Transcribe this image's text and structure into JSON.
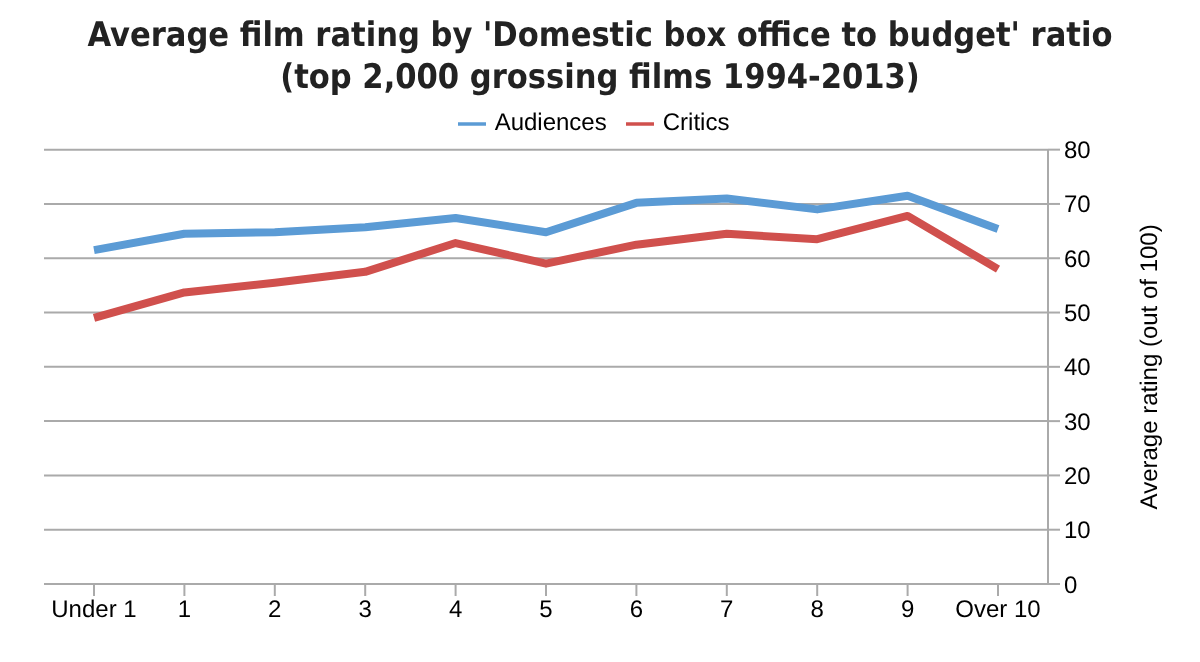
{
  "chart_data": {
    "type": "line",
    "title": "Average film rating by 'Domestic box office to budget' ratio (top 2,000 grossing films 1994-2013)",
    "ylabel": "Average rating (out of 100)",
    "categories": [
      "Under 1",
      "1",
      "2",
      "3",
      "4",
      "5",
      "6",
      "7",
      "8",
      "9",
      "Over 10"
    ],
    "series": [
      {
        "name": "Audiences",
        "color": "#5b9bd5",
        "values": [
          61.5,
          64.5,
          64.8,
          65.7,
          67.4,
          64.8,
          70.2,
          71,
          69,
          71.5,
          65.4
        ]
      },
      {
        "name": "Critics",
        "color": "#d0504d",
        "values": [
          49,
          53.7,
          55.5,
          57.5,
          62.8,
          59,
          62.5,
          64.5,
          63.5,
          67.8,
          58
        ]
      }
    ],
    "ylim": [
      0,
      80
    ],
    "yticks": [
      0,
      10,
      20,
      30,
      40,
      50,
      60,
      70,
      80
    ],
    "grid": "y",
    "legend": "top",
    "marker": "none",
    "line_style": "solid"
  }
}
